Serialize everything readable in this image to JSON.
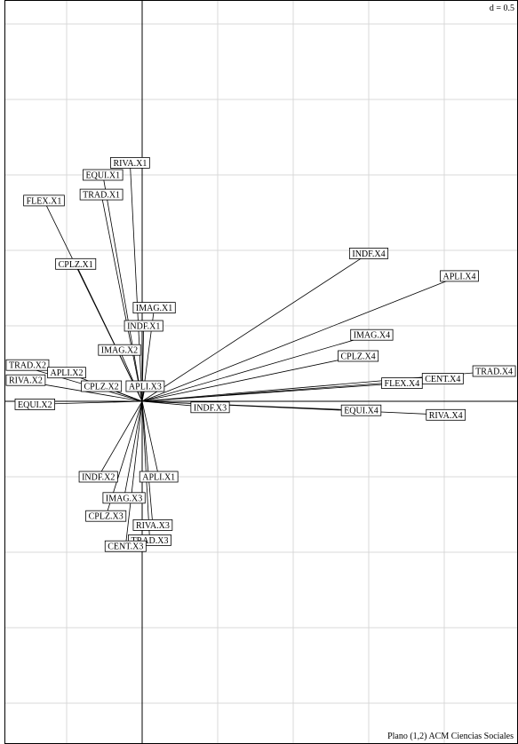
{
  "chart_data": {
    "type": "scatter",
    "title": "Plano (1,2) ACM Ciencias Sociales",
    "scale_label": "d = 0.5",
    "grid": true,
    "grid_step": 0.5,
    "xlim": [
      -0.95,
      2.5
    ],
    "ylim": [
      -2.25,
      2.7
    ],
    "origin": [
      0,
      0
    ],
    "arrows": true,
    "points": [
      {
        "label": "RIVA.X1",
        "x": -0.08,
        "y": 1.58
      },
      {
        "label": "EQUI.X1",
        "x": -0.26,
        "y": 1.5
      },
      {
        "label": "TRAD.X1",
        "x": -0.27,
        "y": 1.37
      },
      {
        "label": "FLEX.X1",
        "x": -0.65,
        "y": 1.33
      },
      {
        "label": "CPLZ.X1",
        "x": -0.44,
        "y": 0.91
      },
      {
        "label": "IMAG.X1",
        "x": 0.08,
        "y": 0.62
      },
      {
        "label": "INDF.X1",
        "x": 0.01,
        "y": 0.5
      },
      {
        "label": "IMAG.X2",
        "x": -0.15,
        "y": 0.34
      },
      {
        "label": "TRAD.X2",
        "x": -0.82,
        "y": 0.24
      },
      {
        "label": "APLI.X2",
        "x": -0.5,
        "y": 0.19
      },
      {
        "label": "RIVA.X2",
        "x": -0.82,
        "y": 0.14
      },
      {
        "label": "CPLZ.X2",
        "x": -0.27,
        "y": 0.1
      },
      {
        "label": "APLI.X3",
        "x": 0.02,
        "y": 0.1
      },
      {
        "label": "EQUI.X2",
        "x": -0.71,
        "y": -0.02
      },
      {
        "label": "INDF.X3",
        "x": 0.45,
        "y": -0.04
      },
      {
        "label": "INDF.X4",
        "x": 1.5,
        "y": 0.98
      },
      {
        "label": "APLI.X4",
        "x": 2.1,
        "y": 0.83
      },
      {
        "label": "IMAG.X4",
        "x": 1.52,
        "y": 0.44
      },
      {
        "label": "CPLZ.X4",
        "x": 1.43,
        "y": 0.3
      },
      {
        "label": "TRAD.X4",
        "x": 2.33,
        "y": 0.2
      },
      {
        "label": "CENT.X4",
        "x": 1.99,
        "y": 0.15
      },
      {
        "label": "FLEX.X4",
        "x": 1.72,
        "y": 0.12
      },
      {
        "label": "EQUI.X4",
        "x": 1.45,
        "y": -0.06
      },
      {
        "label": "RIVA.X4",
        "x": 2.01,
        "y": -0.09
      },
      {
        "label": "INDF.X2",
        "x": -0.29,
        "y": -0.5
      },
      {
        "label": "APLI.X1",
        "x": 0.11,
        "y": -0.5
      },
      {
        "label": "IMAG.X3",
        "x": -0.12,
        "y": -0.64
      },
      {
        "label": "CPLZ.X3",
        "x": -0.24,
        "y": -0.76
      },
      {
        "label": "RIVA.X3",
        "x": 0.07,
        "y": -0.82
      },
      {
        "label": "TRAD.X3",
        "x": 0.05,
        "y": -0.92
      },
      {
        "label": "CENT.X3",
        "x": -0.11,
        "y": -0.96
      }
    ]
  }
}
